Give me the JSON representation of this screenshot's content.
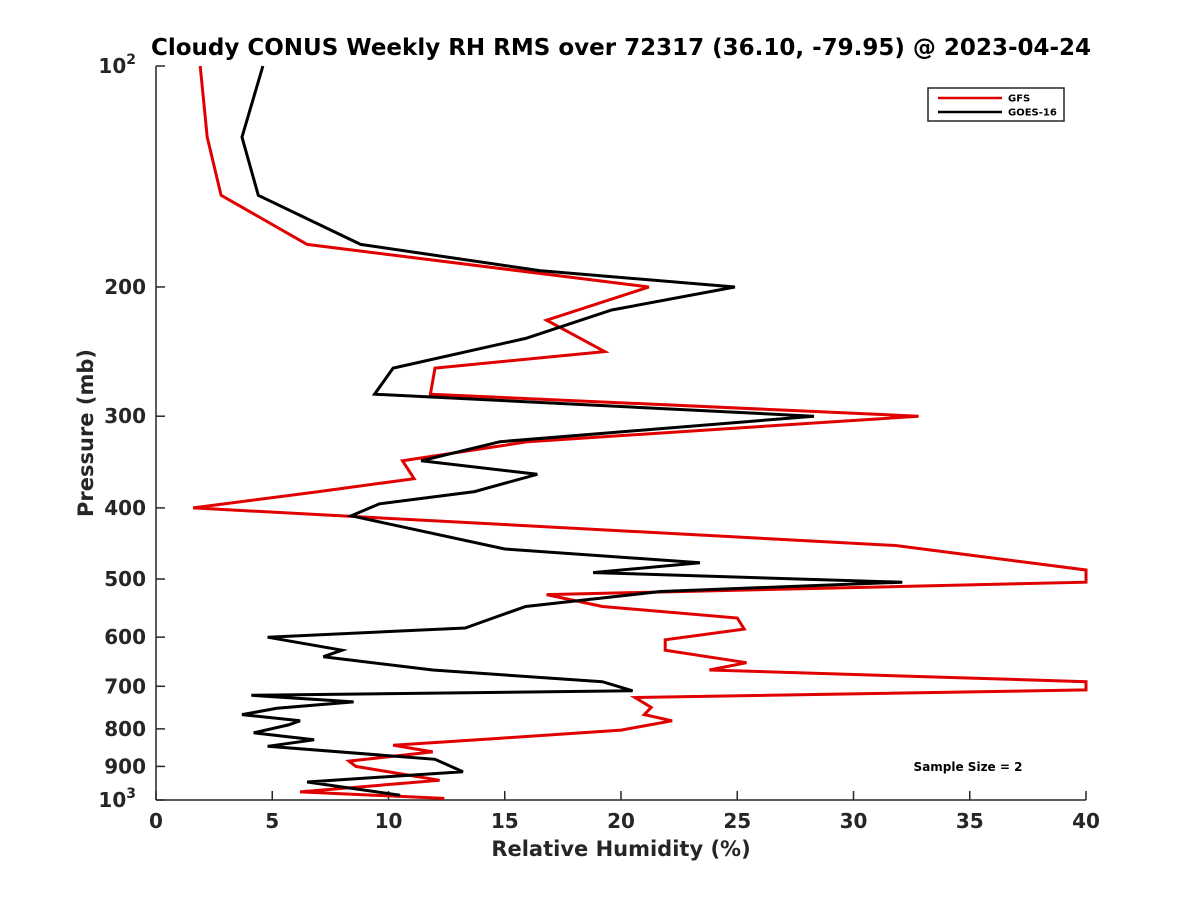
{
  "chart_data": {
    "type": "line",
    "title": "Cloudy CONUS Weekly RH RMS over 72317 (36.10, -79.95) @ 2023-04-24",
    "xlabel": "Relative Humidity (%)",
    "ylabel": "Pressure (mb)",
    "xlim": [
      0,
      40
    ],
    "ylim": [
      100,
      1000
    ],
    "y_scale": "log",
    "y_reversed": true,
    "x_ticks": [
      0,
      5,
      10,
      15,
      20,
      25,
      30,
      35,
      40
    ],
    "y_ticks": [
      {
        "value": 100,
        "label": "10",
        "sup": "2"
      },
      {
        "value": 200,
        "label": "200"
      },
      {
        "value": 300,
        "label": "300"
      },
      {
        "value": 400,
        "label": "400"
      },
      {
        "value": 500,
        "label": "500"
      },
      {
        "value": 600,
        "label": "600"
      },
      {
        "value": 700,
        "label": "700"
      },
      {
        "value": 800,
        "label": "800"
      },
      {
        "value": 900,
        "label": "900"
      },
      {
        "value": 1000,
        "label": "10",
        "sup": "3"
      }
    ],
    "grid": false,
    "legend_position": "top-right",
    "annotation": "Sample Size = 2",
    "series": [
      {
        "name": "GFS",
        "color": "#e00000",
        "points": [
          [
            1.9,
            100
          ],
          [
            2.2,
            125
          ],
          [
            2.8,
            150
          ],
          [
            6.5,
            175
          ],
          [
            21.2,
            200
          ],
          [
            16.8,
            222
          ],
          [
            19.3,
            245
          ],
          [
            12.0,
            258
          ],
          [
            11.8,
            280
          ],
          [
            32.8,
            300
          ],
          [
            16.0,
            325
          ],
          [
            10.6,
            345
          ],
          [
            11.1,
            365
          ],
          [
            7.0,
            380
          ],
          [
            1.6,
            400
          ],
          [
            31.8,
            450
          ],
          [
            40.0,
            486
          ],
          [
            40.0,
            505
          ],
          [
            16.8,
            525
          ],
          [
            19.2,
            545
          ],
          [
            25.0,
            565
          ],
          [
            25.3,
            585
          ],
          [
            21.9,
            605
          ],
          [
            21.9,
            625
          ],
          [
            25.4,
            650
          ],
          [
            23.8,
            665
          ],
          [
            40.0,
            690
          ],
          [
            40.0,
            708
          ],
          [
            20.6,
            725
          ],
          [
            21.3,
            748
          ],
          [
            21.0,
            765
          ],
          [
            22.2,
            780
          ],
          [
            20.0,
            803
          ],
          [
            14.5,
            825
          ],
          [
            10.2,
            842
          ],
          [
            11.9,
            860
          ],
          [
            8.3,
            885
          ],
          [
            8.6,
            900
          ],
          [
            12.2,
            940
          ],
          [
            6.2,
            975
          ],
          [
            12.4,
            995
          ]
        ]
      },
      {
        "name": "GOES-16",
        "color": "#000000",
        "points": [
          [
            4.6,
            100
          ],
          [
            3.7,
            125
          ],
          [
            4.4,
            150
          ],
          [
            8.8,
            175
          ],
          [
            16.5,
            190
          ],
          [
            24.9,
            200
          ],
          [
            19.6,
            215
          ],
          [
            15.9,
            235
          ],
          [
            10.2,
            258
          ],
          [
            9.4,
            280
          ],
          [
            28.3,
            300
          ],
          [
            14.8,
            325
          ],
          [
            11.4,
            345
          ],
          [
            16.4,
            360
          ],
          [
            13.7,
            380
          ],
          [
            9.6,
            395
          ],
          [
            8.4,
            410
          ],
          [
            15.0,
            455
          ],
          [
            23.4,
            475
          ],
          [
            18.8,
            490
          ],
          [
            32.1,
            505
          ],
          [
            21.7,
            520
          ],
          [
            15.9,
            545
          ],
          [
            14.5,
            565
          ],
          [
            13.3,
            583
          ],
          [
            4.8,
            600
          ],
          [
            8.0,
            625
          ],
          [
            7.2,
            638
          ],
          [
            11.9,
            665
          ],
          [
            19.2,
            690
          ],
          [
            20.5,
            710
          ],
          [
            4.1,
            720
          ],
          [
            8.5,
            735
          ],
          [
            5.2,
            750
          ],
          [
            3.7,
            765
          ],
          [
            6.2,
            780
          ],
          [
            5.7,
            790
          ],
          [
            4.2,
            810
          ],
          [
            6.8,
            828
          ],
          [
            4.8,
            845
          ],
          [
            12.0,
            880
          ],
          [
            13.2,
            915
          ],
          [
            6.5,
            945
          ],
          [
            10.5,
            985
          ]
        ]
      }
    ]
  }
}
